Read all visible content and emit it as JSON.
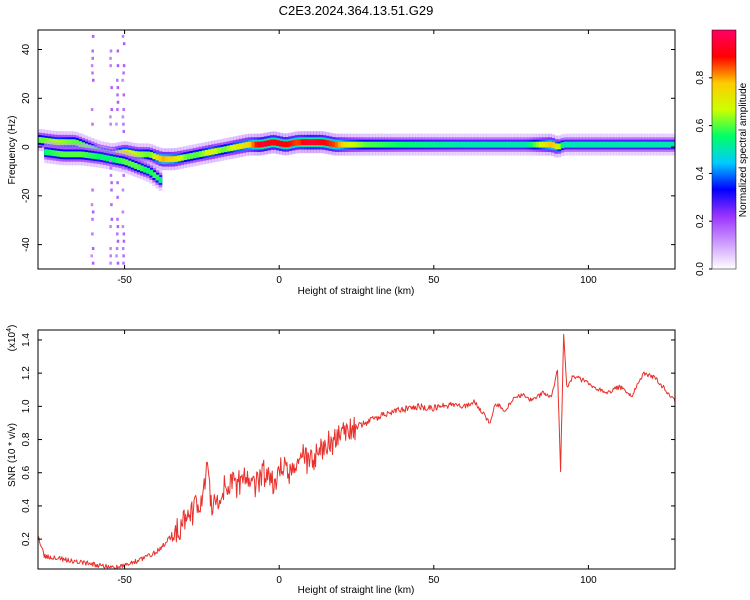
{
  "figure": {
    "title": "C2E3.2024.364.13.51.G29"
  },
  "chart_data": [
    {
      "type": "heatmap",
      "xlabel": "Height of straight line (km)",
      "ylabel": "Frequency (Hz)",
      "xlim": [
        -78,
        128
      ],
      "ylim": [
        -50,
        48
      ],
      "x_ticks": [
        -50,
        0,
        50,
        100
      ],
      "x_tick_labels": [
        "-50",
        "0",
        "50",
        "100"
      ],
      "y_ticks": [
        -40,
        -20,
        0,
        20,
        40
      ],
      "y_tick_labels": [
        "-40",
        "-20",
        "0",
        "20",
        "40"
      ],
      "grid": false,
      "colorbar": {
        "label": "Normalized spectral amplitude",
        "range": [
          0,
          1
        ],
        "ticks": [
          0.0,
          0.2,
          0.4,
          0.6,
          0.8
        ],
        "tick_labels": [
          "0.0",
          "0.2",
          "0.4",
          "0.6",
          "0.8"
        ],
        "colors": [
          "#ffffff",
          "#cc99ff",
          "#9933ff",
          "#0000ff",
          "#00ccff",
          "#00ff66",
          "#ccff00",
          "#ffcc00",
          "#ff0000",
          "#ff0066"
        ]
      },
      "ridge": {
        "x": [
          -78,
          -72,
          -66,
          -62,
          -58,
          -54,
          -50,
          -46,
          -42,
          -38,
          -34,
          -30,
          -26,
          -22,
          -18,
          -14,
          -10,
          -6,
          -2,
          2,
          6,
          10,
          14,
          18,
          22,
          28,
          40,
          60,
          80,
          88,
          90,
          92,
          100,
          128
        ],
        "freq": [
          3,
          2,
          2,
          0,
          -2,
          -3,
          -2,
          -3,
          -3,
          -5,
          -5,
          -4,
          -3,
          -2,
          -1,
          0,
          1,
          1,
          2,
          1,
          2,
          2,
          2,
          1,
          1,
          1,
          1,
          1,
          1,
          1,
          0,
          1,
          1,
          1
        ],
        "amp": [
          0.6,
          0.65,
          0.6,
          0.6,
          0.55,
          0.6,
          0.7,
          0.65,
          0.6,
          0.8,
          0.75,
          0.6,
          0.6,
          0.7,
          0.6,
          0.7,
          0.75,
          0.95,
          0.9,
          0.9,
          0.85,
          0.95,
          0.9,
          0.85,
          0.7,
          0.6,
          0.55,
          0.5,
          0.5,
          0.8,
          0.7,
          0.5,
          0.5,
          0.5
        ]
      },
      "branch": {
        "x": [
          -76,
          -70,
          -64,
          -58,
          -54,
          -50,
          -46,
          -42,
          -40,
          -38
        ],
        "freq": [
          -2,
          -3,
          -3,
          -4,
          -5,
          -6,
          -8,
          -10,
          -12,
          -14
        ],
        "amp": [
          0.55,
          0.6,
          0.6,
          0.55,
          0.55,
          0.6,
          0.6,
          0.55,
          0.6,
          0.5
        ]
      },
      "speckle_columns_x": [
        -61,
        -55,
        -53,
        -51
      ]
    },
    {
      "type": "line",
      "xlabel": "Height of straight line (km)",
      "ylabel": "SNR (10 * v/v)",
      "y_scale_label": "(x10",
      "y_scale_exponent": "4",
      "xlim": [
        -78,
        128
      ],
      "ylim": [
        0.02,
        1.46
      ],
      "x_ticks": [
        -50,
        0,
        50,
        100
      ],
      "x_tick_labels": [
        "-50",
        "0",
        "50",
        "100"
      ],
      "y_ticks": [
        0.2,
        0.4,
        0.6,
        0.8,
        1.0,
        1.2,
        1.4
      ],
      "y_tick_labels": [
        "0.2",
        "0.4",
        "0.6",
        "0.8",
        "1.0",
        "1.2",
        "1.4"
      ],
      "grid": false,
      "series": [
        {
          "color": "#e8312c",
          "x": [
            -78,
            -76,
            -73,
            -70,
            -67,
            -64,
            -61,
            -58,
            -55,
            -52,
            -49,
            -46,
            -43,
            -40,
            -37,
            -34,
            -31,
            -28,
            -25,
            -23,
            -22,
            -20,
            -17,
            -14,
            -11,
            -8,
            -5,
            -2,
            1,
            4,
            7,
            10,
            13,
            16,
            19,
            22,
            25,
            28,
            31,
            34,
            37,
            40,
            45,
            50,
            55,
            60,
            63,
            66,
            68,
            70,
            73,
            76,
            79,
            82,
            85,
            88,
            90,
            91,
            92,
            93,
            95,
            98,
            102,
            106,
            110,
            114,
            118,
            121,
            124,
            128
          ],
          "values": [
            0.22,
            0.1,
            0.09,
            0.08,
            0.07,
            0.06,
            0.05,
            0.04,
            0.035,
            0.03,
            0.05,
            0.07,
            0.09,
            0.12,
            0.17,
            0.24,
            0.3,
            0.36,
            0.45,
            0.7,
            0.4,
            0.45,
            0.55,
            0.52,
            0.58,
            0.5,
            0.6,
            0.54,
            0.65,
            0.6,
            0.7,
            0.66,
            0.74,
            0.78,
            0.8,
            0.85,
            0.88,
            0.9,
            0.93,
            0.95,
            0.97,
            0.98,
            1.0,
            0.99,
            1.01,
            1.0,
            1.03,
            0.96,
            0.9,
            1.02,
            0.97,
            1.05,
            1.07,
            1.03,
            1.08,
            1.06,
            1.22,
            0.62,
            1.44,
            1.12,
            1.18,
            1.16,
            1.12,
            1.08,
            1.12,
            1.06,
            1.2,
            1.18,
            1.12,
            1.03
          ]
        }
      ]
    }
  ]
}
